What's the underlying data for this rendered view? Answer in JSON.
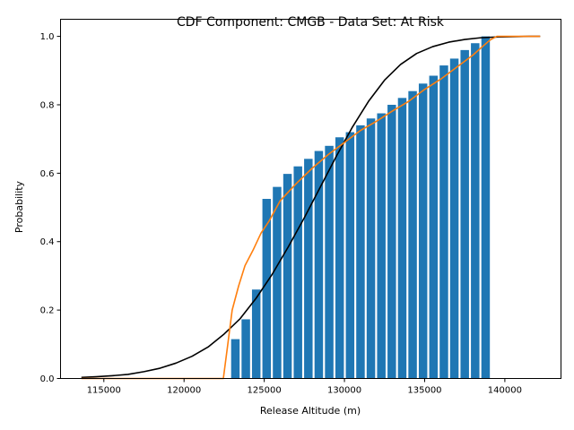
{
  "chart_data": {
    "type": "bar",
    "title": "CDF Component: CMGB - Data Set: At Risk",
    "xlabel": "Release Altitude (m)",
    "ylabel": "Probability",
    "xlim": [
      112300,
      143500
    ],
    "ylim": [
      0,
      1.05
    ],
    "xticks": [
      115000,
      120000,
      125000,
      130000,
      135000,
      140000
    ],
    "yticks": [
      0.0,
      0.2,
      0.4,
      0.6,
      0.8,
      1.0
    ],
    "grid": false,
    "colors": {
      "bars": "#1f77b4",
      "orange": "#ff7f0e",
      "black": "#000000"
    },
    "bar_width": 530,
    "bars": {
      "x": [
        123200,
        123850,
        124500,
        125150,
        125800,
        126450,
        127100,
        127750,
        128400,
        129050,
        129700,
        130350,
        131000,
        131650,
        132300,
        132950,
        133600,
        134250,
        134900,
        135550,
        136200,
        136850,
        137500,
        138150,
        138800
      ],
      "values": [
        0.115,
        0.173,
        0.26,
        0.525,
        0.56,
        0.598,
        0.62,
        0.642,
        0.665,
        0.68,
        0.705,
        0.72,
        0.74,
        0.76,
        0.775,
        0.8,
        0.82,
        0.84,
        0.862,
        0.885,
        0.915,
        0.935,
        0.96,
        0.98,
        1.0
      ]
    },
    "series": [
      {
        "color": "#000000",
        "x": [
          113600,
          114500,
          115500,
          116500,
          117500,
          118500,
          119500,
          120500,
          121500,
          122500,
          123500,
          124500,
          125500,
          126500,
          127500,
          128500,
          129500,
          130500,
          131500,
          132500,
          133500,
          134500,
          135500,
          136500,
          137500,
          138500,
          139500,
          140500,
          141500,
          142200
        ],
        "values": [
          0.003,
          0.005,
          0.008,
          0.012,
          0.02,
          0.03,
          0.045,
          0.065,
          0.092,
          0.13,
          0.175,
          0.235,
          0.305,
          0.385,
          0.47,
          0.56,
          0.65,
          0.735,
          0.81,
          0.872,
          0.918,
          0.95,
          0.97,
          0.983,
          0.991,
          0.996,
          0.998,
          0.999,
          1.0,
          1.0
        ]
      },
      {
        "color": "#ff7f0e",
        "x": [
          113600,
          116000,
          118000,
          120000,
          122000,
          122450,
          122700,
          123000,
          123400,
          123800,
          124300,
          124800,
          125300,
          126000,
          127000,
          128000,
          129000,
          130000,
          131000,
          132000,
          133000,
          134000,
          135000,
          136000,
          137000,
          138000,
          138600,
          139100,
          139500,
          140000,
          141000,
          142200
        ],
        "values": [
          0.0,
          0.0,
          0.0,
          0.0,
          0.0,
          0.0,
          0.09,
          0.2,
          0.27,
          0.33,
          0.375,
          0.425,
          0.46,
          0.52,
          0.57,
          0.615,
          0.655,
          0.69,
          0.725,
          0.752,
          0.782,
          0.81,
          0.845,
          0.875,
          0.91,
          0.945,
          0.97,
          0.99,
          1.0,
          1.0,
          1.0,
          1.0
        ]
      }
    ]
  }
}
